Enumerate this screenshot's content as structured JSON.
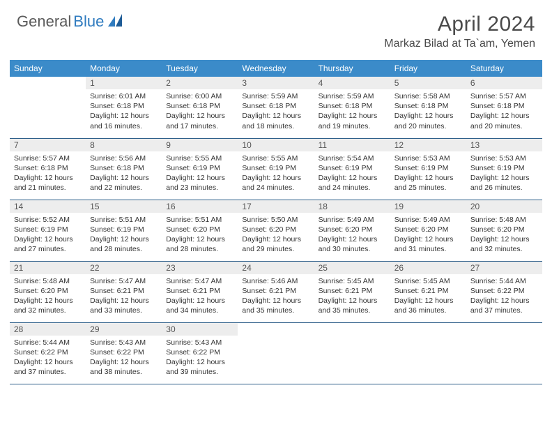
{
  "logo": {
    "text1": "General",
    "text2": "Blue"
  },
  "title": "April 2024",
  "location": "Markaz Bilad at Ta`am, Yemen",
  "colors": {
    "header_bg": "#3b8bc9",
    "header_text": "#ffffff",
    "daynum_bg": "#ededed",
    "row_border": "#2e5f8a",
    "logo_blue": "#2f7bbf",
    "logo_gray": "#5a5a5a"
  },
  "weekdays": [
    "Sunday",
    "Monday",
    "Tuesday",
    "Wednesday",
    "Thursday",
    "Friday",
    "Saturday"
  ],
  "weeks": [
    [
      {
        "n": "",
        "sr": "",
        "ss": "",
        "dl": ""
      },
      {
        "n": "1",
        "sr": "Sunrise: 6:01 AM",
        "ss": "Sunset: 6:18 PM",
        "dl": "Daylight: 12 hours and 16 minutes."
      },
      {
        "n": "2",
        "sr": "Sunrise: 6:00 AM",
        "ss": "Sunset: 6:18 PM",
        "dl": "Daylight: 12 hours and 17 minutes."
      },
      {
        "n": "3",
        "sr": "Sunrise: 5:59 AM",
        "ss": "Sunset: 6:18 PM",
        "dl": "Daylight: 12 hours and 18 minutes."
      },
      {
        "n": "4",
        "sr": "Sunrise: 5:59 AM",
        "ss": "Sunset: 6:18 PM",
        "dl": "Daylight: 12 hours and 19 minutes."
      },
      {
        "n": "5",
        "sr": "Sunrise: 5:58 AM",
        "ss": "Sunset: 6:18 PM",
        "dl": "Daylight: 12 hours and 20 minutes."
      },
      {
        "n": "6",
        "sr": "Sunrise: 5:57 AM",
        "ss": "Sunset: 6:18 PM",
        "dl": "Daylight: 12 hours and 20 minutes."
      }
    ],
    [
      {
        "n": "7",
        "sr": "Sunrise: 5:57 AM",
        "ss": "Sunset: 6:18 PM",
        "dl": "Daylight: 12 hours and 21 minutes."
      },
      {
        "n": "8",
        "sr": "Sunrise: 5:56 AM",
        "ss": "Sunset: 6:18 PM",
        "dl": "Daylight: 12 hours and 22 minutes."
      },
      {
        "n": "9",
        "sr": "Sunrise: 5:55 AM",
        "ss": "Sunset: 6:19 PM",
        "dl": "Daylight: 12 hours and 23 minutes."
      },
      {
        "n": "10",
        "sr": "Sunrise: 5:55 AM",
        "ss": "Sunset: 6:19 PM",
        "dl": "Daylight: 12 hours and 24 minutes."
      },
      {
        "n": "11",
        "sr": "Sunrise: 5:54 AM",
        "ss": "Sunset: 6:19 PM",
        "dl": "Daylight: 12 hours and 24 minutes."
      },
      {
        "n": "12",
        "sr": "Sunrise: 5:53 AM",
        "ss": "Sunset: 6:19 PM",
        "dl": "Daylight: 12 hours and 25 minutes."
      },
      {
        "n": "13",
        "sr": "Sunrise: 5:53 AM",
        "ss": "Sunset: 6:19 PM",
        "dl": "Daylight: 12 hours and 26 minutes."
      }
    ],
    [
      {
        "n": "14",
        "sr": "Sunrise: 5:52 AM",
        "ss": "Sunset: 6:19 PM",
        "dl": "Daylight: 12 hours and 27 minutes."
      },
      {
        "n": "15",
        "sr": "Sunrise: 5:51 AM",
        "ss": "Sunset: 6:19 PM",
        "dl": "Daylight: 12 hours and 28 minutes."
      },
      {
        "n": "16",
        "sr": "Sunrise: 5:51 AM",
        "ss": "Sunset: 6:20 PM",
        "dl": "Daylight: 12 hours and 28 minutes."
      },
      {
        "n": "17",
        "sr": "Sunrise: 5:50 AM",
        "ss": "Sunset: 6:20 PM",
        "dl": "Daylight: 12 hours and 29 minutes."
      },
      {
        "n": "18",
        "sr": "Sunrise: 5:49 AM",
        "ss": "Sunset: 6:20 PM",
        "dl": "Daylight: 12 hours and 30 minutes."
      },
      {
        "n": "19",
        "sr": "Sunrise: 5:49 AM",
        "ss": "Sunset: 6:20 PM",
        "dl": "Daylight: 12 hours and 31 minutes."
      },
      {
        "n": "20",
        "sr": "Sunrise: 5:48 AM",
        "ss": "Sunset: 6:20 PM",
        "dl": "Daylight: 12 hours and 32 minutes."
      }
    ],
    [
      {
        "n": "21",
        "sr": "Sunrise: 5:48 AM",
        "ss": "Sunset: 6:20 PM",
        "dl": "Daylight: 12 hours and 32 minutes."
      },
      {
        "n": "22",
        "sr": "Sunrise: 5:47 AM",
        "ss": "Sunset: 6:21 PM",
        "dl": "Daylight: 12 hours and 33 minutes."
      },
      {
        "n": "23",
        "sr": "Sunrise: 5:47 AM",
        "ss": "Sunset: 6:21 PM",
        "dl": "Daylight: 12 hours and 34 minutes."
      },
      {
        "n": "24",
        "sr": "Sunrise: 5:46 AM",
        "ss": "Sunset: 6:21 PM",
        "dl": "Daylight: 12 hours and 35 minutes."
      },
      {
        "n": "25",
        "sr": "Sunrise: 5:45 AM",
        "ss": "Sunset: 6:21 PM",
        "dl": "Daylight: 12 hours and 35 minutes."
      },
      {
        "n": "26",
        "sr": "Sunrise: 5:45 AM",
        "ss": "Sunset: 6:21 PM",
        "dl": "Daylight: 12 hours and 36 minutes."
      },
      {
        "n": "27",
        "sr": "Sunrise: 5:44 AM",
        "ss": "Sunset: 6:22 PM",
        "dl": "Daylight: 12 hours and 37 minutes."
      }
    ],
    [
      {
        "n": "28",
        "sr": "Sunrise: 5:44 AM",
        "ss": "Sunset: 6:22 PM",
        "dl": "Daylight: 12 hours and 37 minutes."
      },
      {
        "n": "29",
        "sr": "Sunrise: 5:43 AM",
        "ss": "Sunset: 6:22 PM",
        "dl": "Daylight: 12 hours and 38 minutes."
      },
      {
        "n": "30",
        "sr": "Sunrise: 5:43 AM",
        "ss": "Sunset: 6:22 PM",
        "dl": "Daylight: 12 hours and 39 minutes."
      },
      {
        "n": "",
        "sr": "",
        "ss": "",
        "dl": ""
      },
      {
        "n": "",
        "sr": "",
        "ss": "",
        "dl": ""
      },
      {
        "n": "",
        "sr": "",
        "ss": "",
        "dl": ""
      },
      {
        "n": "",
        "sr": "",
        "ss": "",
        "dl": ""
      }
    ]
  ]
}
